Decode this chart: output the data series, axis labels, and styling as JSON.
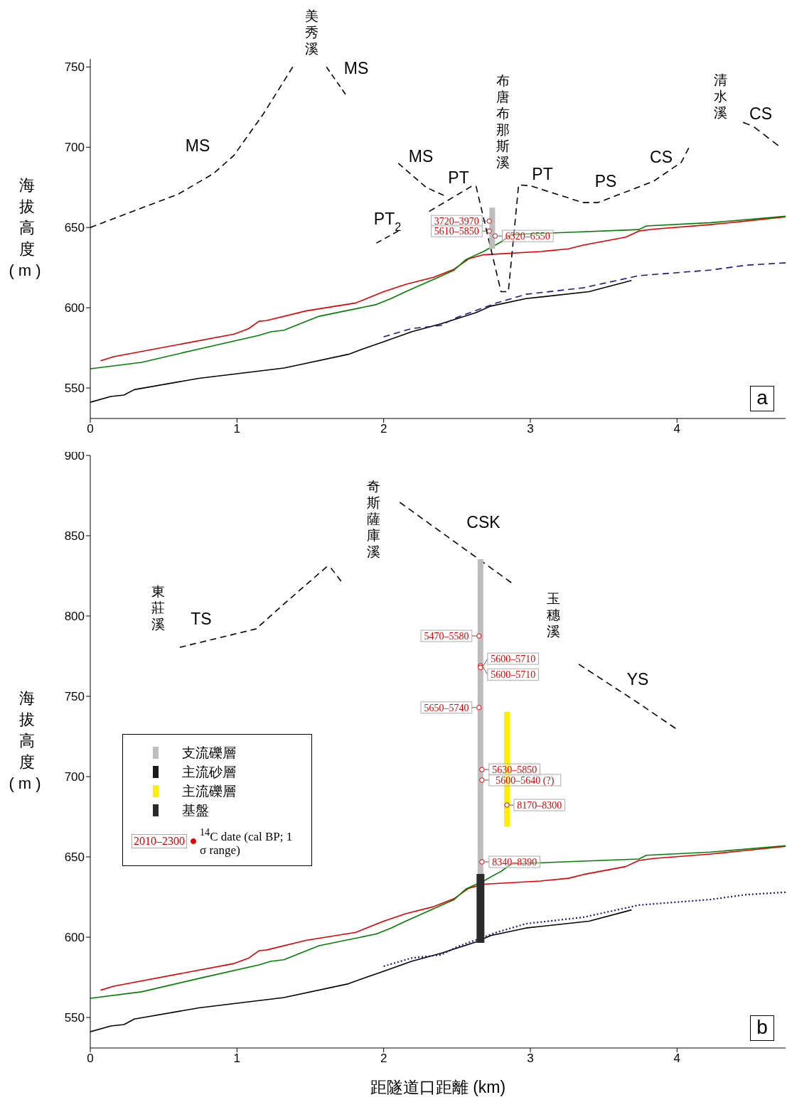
{
  "chart_data": [
    {
      "type": "line",
      "title": "a",
      "ylabel": "海拔高度 (m)",
      "xlim": [
        0,
        4.74
      ],
      "xticks": [
        0,
        1,
        2,
        3,
        4
      ],
      "ylim": [
        531,
        755
      ],
      "yticks": [
        550,
        600,
        650,
        700,
        750
      ],
      "legend": false,
      "marker": "none",
      "series": [
        {
          "color": "#e00000",
          "line_style": "solid",
          "x": [
            0.07,
            0.16,
            0.98,
            1.08,
            1.15,
            1.2,
            1.47,
            1.81,
            2.0,
            2.15,
            2.34,
            2.48,
            2.58,
            2.68,
            3.07,
            3.26,
            3.36,
            3.65,
            3.74,
            3.84,
            4.23,
            4.47,
            4.74
          ],
          "values": [
            567,
            569.5,
            583.6,
            587,
            591.6,
            592,
            598,
            603,
            610,
            614.6,
            619,
            624,
            630.5,
            633,
            635,
            636.7,
            639,
            644,
            647.8,
            649,
            651.8,
            654,
            656.6
          ]
        },
        {
          "color": "#008000",
          "line_style": "solid",
          "x": [
            0,
            0.35,
            0.74,
            1.15,
            1.23,
            1.32,
            1.56,
            1.95,
            2.05,
            2.15,
            2.34,
            2.48,
            2.56,
            2.68,
            2.8,
            2.87,
            3.26,
            3.74,
            3.79,
            4.23,
            4.74
          ],
          "values": [
            562,
            566,
            574.3,
            582.8,
            585,
            586,
            594.7,
            602,
            605.7,
            610,
            617.7,
            623.4,
            630,
            635,
            641,
            645.6,
            647,
            648.7,
            651,
            653,
            657
          ]
        },
        {
          "color": "#000000",
          "line_style": "solid",
          "x": [
            0,
            0.14,
            0.23,
            0.3,
            0.74,
            1.32,
            1.76,
            1.85,
            2.0,
            2.19,
            2.39,
            2.63,
            2.73,
            2.97,
            3.4,
            3.69
          ],
          "values": [
            541.1,
            544.7,
            545.6,
            549,
            556,
            562.4,
            571,
            574,
            578.8,
            585,
            590,
            597,
            601,
            605.7,
            610,
            617
          ]
        },
        {
          "color": "#1a1a80",
          "line_style": "dashed",
          "x": [
            2.0,
            2.19,
            2.39,
            2.5,
            2.77,
            2.97,
            3.36,
            3.74,
            4.23,
            4.47,
            4.74
          ],
          "values": [
            581.9,
            587,
            589,
            594,
            603,
            608.4,
            612.4,
            620,
            623.5,
            626.5,
            628
          ]
        },
        {
          "color": "#000000",
          "line_style": "dashed",
          "x": [
            0,
            0.6,
            0.84,
            0.98,
            1.18,
            1.38
          ],
          "values": [
            650,
            670.8,
            683.6,
            695,
            720.8,
            750
          ]
        },
        {
          "color": "#000000",
          "line_style": "dashed",
          "x": [
            1.61,
            1.74
          ],
          "values": [
            750,
            733
          ]
        },
        {
          "color": "#000000",
          "line_style": "dashed",
          "x": [
            1.95,
            2.1
          ],
          "values": [
            640.3,
            647.8
          ]
        },
        {
          "color": "#000000",
          "line_style": "dashed",
          "x": [
            2.1,
            2.29,
            2.41
          ],
          "values": [
            690,
            675,
            670
          ]
        },
        {
          "color": "#000000",
          "line_style": "dashed",
          "x": [
            2.31,
            2.6,
            2.63,
            2.8,
            2.85,
            2.92,
            3.0,
            3.36,
            3.46,
            3.84,
            4.03,
            4.08
          ],
          "values": [
            660,
            675.7,
            675.7,
            610,
            610,
            676.5,
            676,
            665.5,
            665.5,
            678.8,
            690.7,
            699.6
          ]
        },
        {
          "color": "#000000",
          "line_style": "dashed",
          "x": [
            4.45,
            4.52,
            4.69
          ],
          "values": [
            715.5,
            713,
            701
          ]
        },
        {
          "color": "#bdbdbd",
          "line_style": "solid",
          "x": [
            2.74,
            2.74
          ],
          "values": [
            636.7,
            662.4
          ]
        },
        {
          "type": "scatter",
          "color": "#e00000",
          "marker": "circle",
          "x": [
            2.72,
            2.72,
            2.76
          ],
          "values": [
            654,
            647.8,
            644.7
          ],
          "value_labels": [
            "3720–3970",
            "5610–5850",
            "6320–6550"
          ]
        }
      ],
      "annotations": [
        "美秀溪",
        "MS",
        "MS",
        "MS",
        "PT",
        "PT$_{2}$",
        "布唐布那斯溪",
        "PT",
        "PS",
        "CS",
        "清水溪",
        "CS"
      ]
    },
    {
      "type": "line",
      "title": "b",
      "ylabel": "海拔高度 (m)",
      "xlabel": "距隧道口距離 (km)",
      "xlim": [
        0,
        4.74
      ],
      "xticks": [
        0,
        1,
        2,
        3,
        4
      ],
      "ylim": [
        531,
        900
      ],
      "yticks": [
        550,
        600,
        650,
        700,
        750,
        800,
        850,
        900
      ],
      "legend": "left",
      "marker": "none",
      "series": [
        {
          "color": "#e00000",
          "line_style": "solid",
          "x": [
            0.07,
            0.16,
            0.98,
            1.08,
            1.15,
            1.2,
            1.47,
            1.81,
            2.0,
            2.15,
            2.34,
            2.48,
            2.58,
            2.68,
            3.07,
            3.26,
            3.36,
            3.65,
            3.74,
            3.84,
            4.23,
            4.47,
            4.74
          ],
          "values": [
            567,
            569.5,
            583.6,
            587,
            591.6,
            592,
            598,
            603,
            610,
            614.6,
            619,
            624,
            630.5,
            633,
            635,
            636.7,
            639,
            644,
            647.8,
            649,
            651.8,
            654,
            656.6
          ]
        },
        {
          "color": "#008000",
          "line_style": "solid",
          "x": [
            0,
            0.35,
            0.74,
            1.15,
            1.23,
            1.32,
            1.56,
            1.95,
            2.05,
            2.15,
            2.34,
            2.48,
            2.56,
            2.68,
            2.8,
            2.87,
            3.26,
            3.74,
            3.79,
            4.23,
            4.74
          ],
          "values": [
            562,
            566,
            574.3,
            582.8,
            585,
            586,
            594.7,
            602,
            605.7,
            610,
            617.7,
            623.4,
            630,
            635,
            641,
            645.6,
            647,
            648.7,
            651,
            653,
            657
          ]
        },
        {
          "color": "#000000",
          "line_style": "solid",
          "x": [
            0,
            0.14,
            0.23,
            0.3,
            0.74,
            1.32,
            1.76,
            1.85,
            2.0,
            2.19,
            2.39,
            2.63,
            2.73,
            2.97,
            3.4,
            3.69
          ],
          "values": [
            541.1,
            544.7,
            545.6,
            549,
            556,
            562.4,
            571,
            574,
            578.8,
            585,
            590,
            597,
            601,
            605.7,
            610,
            617
          ]
        },
        {
          "color": "#1a1a80",
          "line_style": "dotted",
          "x": [
            2.0,
            2.19,
            2.39,
            2.5,
            2.77,
            2.97,
            3.36,
            3.74,
            4.23,
            4.47,
            4.74
          ],
          "values": [
            581.9,
            587,
            589,
            594,
            603,
            608.4,
            612.4,
            620,
            623.5,
            626.5,
            628
          ]
        },
        {
          "color": "#000000",
          "line_style": "dashed",
          "x": [
            0.61,
            1.13,
            1.32,
            1.61,
            1.64,
            1.71
          ],
          "values": [
            780.5,
            792,
            807.5,
            830.5,
            830,
            821.7
          ]
        },
        {
          "color": "#000000",
          "line_style": "dashed",
          "x": [
            2.11,
            2.87
          ],
          "values": [
            870.8,
            820.8
          ]
        },
        {
          "color": "#000000",
          "line_style": "dashed",
          "x": [
            3.33,
            3.74,
            3.99
          ],
          "values": [
            770,
            745.6,
            730
          ]
        },
        {
          "type": "line",
          "name": "支流礫層",
          "color": "#bdbdbd",
          "line_style": "solid",
          "x": [
            2.66,
            2.66
          ],
          "values": [
            639.4,
            835.4
          ]
        },
        {
          "type": "line",
          "name": "主流砂層",
          "color": "#1a1a1a",
          "line_style": "solid"
        },
        {
          "type": "line",
          "name": "主流礫層",
          "color": "#ffee00",
          "line_style": "solid",
          "x": [
            2.84,
            2.84
          ],
          "values": [
            669,
            740.3
          ]
        },
        {
          "type": "line",
          "name": "基盤",
          "color": "#2a2a2a",
          "line_style": "solid",
          "x": [
            2.66,
            2.66
          ],
          "values": [
            596.5,
            639.4
          ]
        },
        {
          "type": "scatter",
          "name": "$^{14}$C date (cal BP; 1 σ range)",
          "color": "#e00000",
          "marker": "circle",
          "x": [
            2.65,
            2.66,
            2.66,
            2.65,
            2.67,
            2.67,
            2.84,
            2.67
          ],
          "values": [
            787.6,
            769,
            768,
            743,
            704.4,
            697.8,
            682.3,
            646.9
          ],
          "value_labels": [
            "5470–5580",
            "5600–5710",
            "5600–5710",
            "5650–5740",
            "5630–5850",
            "5600–5640 (?)",
            "8170–8300",
            "8340–8390"
          ]
        }
      ],
      "annotations": [
        "2010–2300",
        "奇斯薩庫溪",
        "CSK",
        "東莊溪",
        "TS",
        "玉穗溪",
        "YS"
      ]
    }
  ]
}
